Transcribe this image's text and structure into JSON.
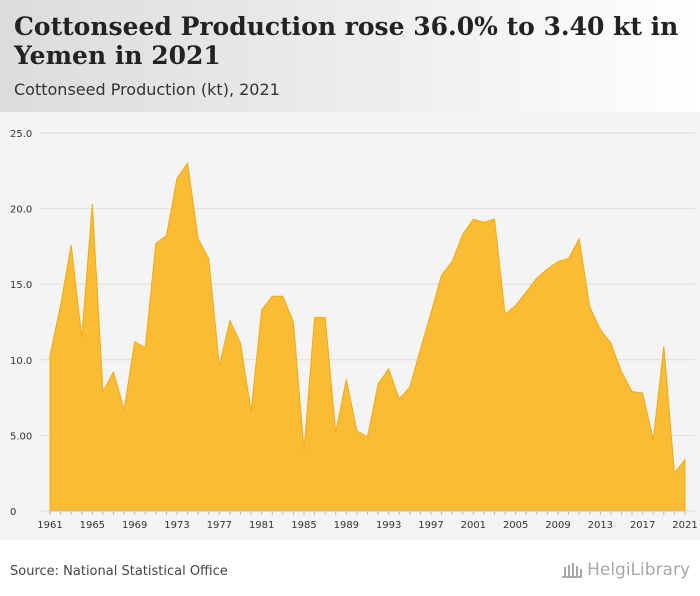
{
  "header": {
    "title": "Cottonseed Production rose 36.0% to 3.40 kt in Yemen in 2021",
    "subtitle": "Cottonseed Production (kt), 2021"
  },
  "footer": {
    "source": "Source: National Statistical Office",
    "logo_text": "HelgiLibrary"
  },
  "colors": {
    "area_fill": "#f9bc34",
    "area_stroke": "#f2ab12",
    "grid": "#dddddd",
    "header_bg": "#e4e4e4"
  },
  "chart_data": {
    "type": "area",
    "title": "Cottonseed Production (kt), 2021",
    "xlabel": "",
    "ylabel": "",
    "x": [
      1961,
      1962,
      1963,
      1964,
      1965,
      1966,
      1967,
      1968,
      1969,
      1970,
      1971,
      1972,
      1973,
      1974,
      1975,
      1976,
      1977,
      1978,
      1979,
      1980,
      1981,
      1982,
      1983,
      1984,
      1985,
      1986,
      1987,
      1988,
      1989,
      1990,
      1991,
      1992,
      1993,
      1994,
      1995,
      1996,
      1997,
      1998,
      1999,
      2000,
      2001,
      2002,
      2003,
      2004,
      2005,
      2006,
      2007,
      2008,
      2009,
      2010,
      2011,
      2012,
      2013,
      2014,
      2015,
      2016,
      2017,
      2018,
      2019,
      2020,
      2021
    ],
    "y": [
      10.3,
      13.6,
      17.6,
      11.5,
      20.3,
      7.9,
      9.2,
      6.7,
      11.2,
      10.8,
      17.7,
      18.2,
      22.0,
      23.0,
      18.0,
      16.7,
      9.6,
      12.6,
      11.1,
      6.6,
      13.3,
      14.2,
      14.2,
      12.5,
      4.0,
      12.8,
      12.8,
      5.2,
      8.7,
      5.3,
      4.9,
      8.4,
      9.4,
      7.4,
      8.2,
      10.7,
      13.1,
      15.6,
      16.5,
      18.3,
      19.3,
      19.1,
      19.3,
      13.0,
      13.6,
      14.5,
      15.4,
      16.0,
      16.5,
      16.7,
      18.0,
      13.5,
      12.0,
      11.1,
      9.2,
      7.9,
      7.8,
      4.7,
      10.9,
      2.5,
      3.4
    ],
    "xticks": [
      1961,
      1965,
      1969,
      1973,
      1977,
      1981,
      1985,
      1989,
      1993,
      1997,
      2001,
      2005,
      2009,
      2013,
      2017,
      2021
    ],
    "yticks": [
      0,
      5,
      10,
      15,
      20,
      25
    ],
    "ytick_labels": [
      "0",
      "5.00",
      "10.0",
      "15.0",
      "20.0",
      "25.0"
    ],
    "ylim": [
      0,
      25
    ],
    "xlim": [
      1961,
      2021
    ],
    "grid": true,
    "legend": "none"
  }
}
